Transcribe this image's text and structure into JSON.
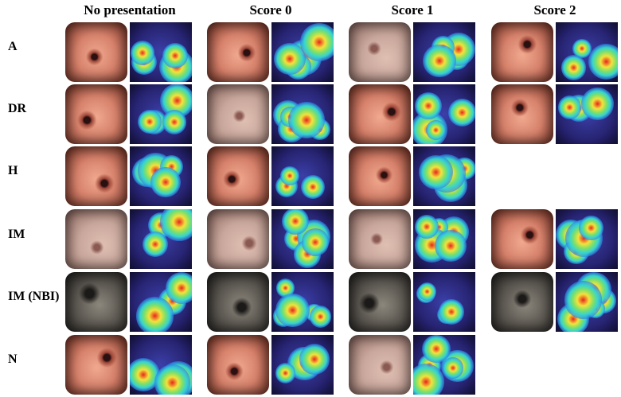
{
  "columns": [
    "No presentation",
    "Score 0",
    "Score 1",
    "Score 2"
  ],
  "rows": [
    "A",
    "DR",
    "H",
    "IM",
    "IM (NBI)",
    "N"
  ],
  "palette": {
    "endoscopy_pink": "#d7826c",
    "endoscopy_pale": "#c9a79c",
    "nbi_dark": "#5a5650",
    "heat_base": "#24206a",
    "heat_blue": "#2a6cf0",
    "heat_cyan": "#37d4d0",
    "heat_green": "#7ce06a",
    "heat_yellow": "#f2e23c",
    "heat_red": "#e8261c"
  },
  "cells": [
    {
      "row": 0,
      "col": 0,
      "present": true,
      "tone": "pink"
    },
    {
      "row": 0,
      "col": 1,
      "present": true,
      "tone": "pink"
    },
    {
      "row": 0,
      "col": 2,
      "present": true,
      "tone": "pale"
    },
    {
      "row": 0,
      "col": 3,
      "present": true,
      "tone": "pink"
    },
    {
      "row": 1,
      "col": 0,
      "present": true,
      "tone": "pink"
    },
    {
      "row": 1,
      "col": 1,
      "present": true,
      "tone": "pale"
    },
    {
      "row": 1,
      "col": 2,
      "present": true,
      "tone": "pink"
    },
    {
      "row": 1,
      "col": 3,
      "present": true,
      "tone": "pink"
    },
    {
      "row": 2,
      "col": 0,
      "present": true,
      "tone": "pink"
    },
    {
      "row": 2,
      "col": 1,
      "present": true,
      "tone": "pink"
    },
    {
      "row": 2,
      "col": 2,
      "present": true,
      "tone": "pink"
    },
    {
      "row": 2,
      "col": 3,
      "present": false,
      "tone": ""
    },
    {
      "row": 3,
      "col": 0,
      "present": true,
      "tone": "pale"
    },
    {
      "row": 3,
      "col": 1,
      "present": true,
      "tone": "pale"
    },
    {
      "row": 3,
      "col": 2,
      "present": true,
      "tone": "pale"
    },
    {
      "row": 3,
      "col": 3,
      "present": true,
      "tone": "pink"
    },
    {
      "row": 4,
      "col": 0,
      "present": true,
      "tone": "nbi"
    },
    {
      "row": 4,
      "col": 1,
      "present": true,
      "tone": "nbi"
    },
    {
      "row": 4,
      "col": 2,
      "present": true,
      "tone": "nbi"
    },
    {
      "row": 4,
      "col": 3,
      "present": true,
      "tone": "nbi"
    },
    {
      "row": 5,
      "col": 0,
      "present": true,
      "tone": "pink"
    },
    {
      "row": 5,
      "col": 1,
      "present": true,
      "tone": "pink"
    },
    {
      "row": 5,
      "col": 2,
      "present": true,
      "tone": "pale"
    },
    {
      "row": 5,
      "col": 3,
      "present": false,
      "tone": ""
    }
  ]
}
